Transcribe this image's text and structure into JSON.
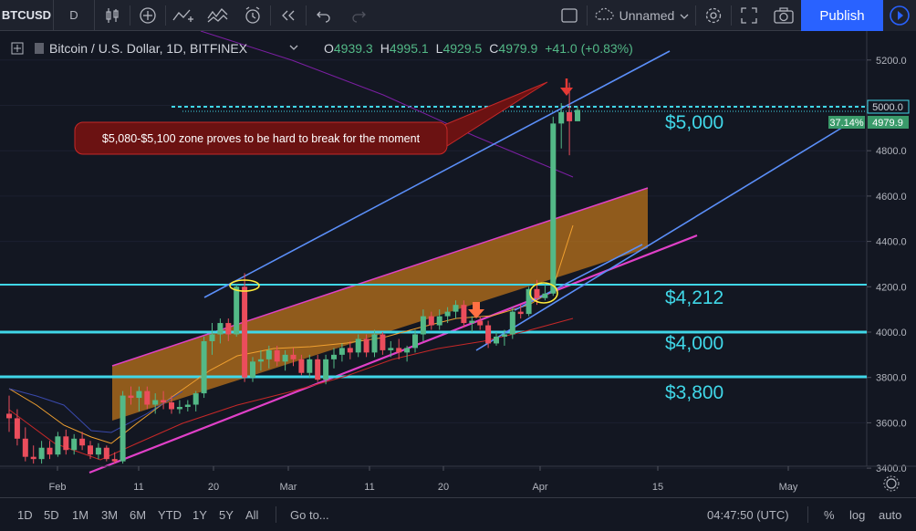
{
  "toolbar": {
    "symbol": "BTCUSD",
    "interval": "D",
    "layout_name": "Unnamed",
    "publish_label": "Publish",
    "icons": [
      "candles-icon",
      "add-indicator-icon",
      "compare-icon",
      "indicators-icon",
      "alert-icon",
      "replay-icon",
      "undo-icon",
      "redo-icon",
      "layout-icon",
      "cloud-icon",
      "settings-icon",
      "fullscreen-icon",
      "snapshot-icon",
      "play-icon"
    ]
  },
  "legend": {
    "title": "Bitcoin / U.S. Dollar, 1D, BITFINEX",
    "o_label": "O",
    "o_value": "4939.3",
    "h_label": "H",
    "h_value": "4995.1",
    "l_label": "L",
    "l_value": "4929.5",
    "c_label": "C",
    "c_value": "4979.9",
    "change": "+41.0 (+0.83%)"
  },
  "annotation": "$5,080-$5,100 zone proves to be hard to break for the moment",
  "level_labels": [
    "$5,000",
    "$4,212",
    "$4,000",
    "$3,800"
  ],
  "price_badges": {
    "dotted_line": "5000.0",
    "percent": "37.14%",
    "last_price": "4979.9"
  },
  "colors": {
    "background": "#131722",
    "up": "#53b987",
    "down": "#eb4d5c",
    "level_lines": "#40d7e8",
    "channel_lines": "#5b8ff9",
    "band_border": "#e040c8",
    "band_fill": "#c0761a",
    "annotation_bg": "#6b1212",
    "publish_button": "#2962ff"
  },
  "bottom": {
    "ranges": [
      "1D",
      "5D",
      "1M",
      "3M",
      "6M",
      "YTD",
      "1Y",
      "5Y",
      "All"
    ],
    "goto": "Go to...",
    "clock": "04:47:50 (UTC)",
    "percent": "%",
    "log": "log",
    "auto": "auto"
  },
  "chart_data": {
    "type": "candlestick",
    "title": "Bitcoin / U.S. Dollar, 1D, BITFINEX",
    "x_tick_labels": [
      "Feb",
      "11",
      "20",
      "Mar",
      "11",
      "20",
      "Apr",
      "15",
      "May"
    ],
    "y_tick_labels": [
      "5200.0",
      "5000.0",
      "4800.0",
      "4600.0",
      "4400.0",
      "4200.0",
      "4000.0",
      "3800.0",
      "3600.0",
      "3400.0"
    ],
    "ylim": [
      3400,
      5300
    ],
    "horizontal_levels": [
      5000,
      4212,
      4000,
      3800
    ],
    "candles": [
      {
        "o": 3640,
        "h": 3720,
        "l": 3560,
        "c": 3620
      },
      {
        "o": 3620,
        "h": 3660,
        "l": 3500,
        "c": 3530
      },
      {
        "o": 3530,
        "h": 3580,
        "l": 3430,
        "c": 3450
      },
      {
        "o": 3450,
        "h": 3500,
        "l": 3420,
        "c": 3440
      },
      {
        "o": 3440,
        "h": 3520,
        "l": 3420,
        "c": 3490
      },
      {
        "o": 3490,
        "h": 3520,
        "l": 3440,
        "c": 3460
      },
      {
        "o": 3460,
        "h": 3560,
        "l": 3450,
        "c": 3540
      },
      {
        "o": 3540,
        "h": 3570,
        "l": 3460,
        "c": 3480
      },
      {
        "o": 3480,
        "h": 3550,
        "l": 3460,
        "c": 3530
      },
      {
        "o": 3530,
        "h": 3560,
        "l": 3480,
        "c": 3500
      },
      {
        "o": 3500,
        "h": 3520,
        "l": 3440,
        "c": 3460
      },
      {
        "o": 3460,
        "h": 3510,
        "l": 3440,
        "c": 3490
      },
      {
        "o": 3490,
        "h": 3500,
        "l": 3430,
        "c": 3440
      },
      {
        "o": 3440,
        "h": 3470,
        "l": 3420,
        "c": 3430
      },
      {
        "o": 3430,
        "h": 3740,
        "l": 3420,
        "c": 3720
      },
      {
        "o": 3720,
        "h": 3760,
        "l": 3680,
        "c": 3710
      },
      {
        "o": 3710,
        "h": 3760,
        "l": 3650,
        "c": 3740
      },
      {
        "o": 3740,
        "h": 3760,
        "l": 3660,
        "c": 3680
      },
      {
        "o": 3680,
        "h": 3730,
        "l": 3640,
        "c": 3700
      },
      {
        "o": 3700,
        "h": 3740,
        "l": 3660,
        "c": 3690
      },
      {
        "o": 3690,
        "h": 3720,
        "l": 3640,
        "c": 3660
      },
      {
        "o": 3660,
        "h": 3700,
        "l": 3640,
        "c": 3670
      },
      {
        "o": 3670,
        "h": 3700,
        "l": 3650,
        "c": 3680
      },
      {
        "o": 3680,
        "h": 3740,
        "l": 3650,
        "c": 3730
      },
      {
        "o": 3730,
        "h": 3980,
        "l": 3710,
        "c": 3960
      },
      {
        "o": 3960,
        "h": 4040,
        "l": 3900,
        "c": 3990
      },
      {
        "o": 3990,
        "h": 4060,
        "l": 3950,
        "c": 4040
      },
      {
        "o": 4040,
        "h": 4060,
        "l": 3960,
        "c": 3990
      },
      {
        "o": 3990,
        "h": 4210,
        "l": 3980,
        "c": 4200
      },
      {
        "o": 4200,
        "h": 4260,
        "l": 3780,
        "c": 3800
      },
      {
        "o": 3800,
        "h": 3890,
        "l": 3780,
        "c": 3870
      },
      {
        "o": 3870,
        "h": 3920,
        "l": 3830,
        "c": 3880
      },
      {
        "o": 3880,
        "h": 3940,
        "l": 3840,
        "c": 3920
      },
      {
        "o": 3920,
        "h": 3940,
        "l": 3850,
        "c": 3870
      },
      {
        "o": 3870,
        "h": 3920,
        "l": 3830,
        "c": 3900
      },
      {
        "o": 3900,
        "h": 3930,
        "l": 3850,
        "c": 3880
      },
      {
        "o": 3880,
        "h": 3900,
        "l": 3810,
        "c": 3820
      },
      {
        "o": 3820,
        "h": 3900,
        "l": 3800,
        "c": 3880
      },
      {
        "o": 3880,
        "h": 3900,
        "l": 3780,
        "c": 3790
      },
      {
        "o": 3790,
        "h": 3900,
        "l": 3770,
        "c": 3880
      },
      {
        "o": 3880,
        "h": 3930,
        "l": 3840,
        "c": 3900
      },
      {
        "o": 3900,
        "h": 3950,
        "l": 3870,
        "c": 3930
      },
      {
        "o": 3930,
        "h": 3960,
        "l": 3880,
        "c": 3910
      },
      {
        "o": 3910,
        "h": 3990,
        "l": 3890,
        "c": 3970
      },
      {
        "o": 3970,
        "h": 3990,
        "l": 3890,
        "c": 3910
      },
      {
        "o": 3910,
        "h": 4010,
        "l": 3890,
        "c": 3990
      },
      {
        "o": 3990,
        "h": 4000,
        "l": 3900,
        "c": 3920
      },
      {
        "o": 3920,
        "h": 3960,
        "l": 3890,
        "c": 3930
      },
      {
        "o": 3930,
        "h": 3970,
        "l": 3880,
        "c": 3910
      },
      {
        "o": 3910,
        "h": 3940,
        "l": 3870,
        "c": 3930
      },
      {
        "o": 3930,
        "h": 4010,
        "l": 3910,
        "c": 3990
      },
      {
        "o": 3990,
        "h": 4100,
        "l": 3960,
        "c": 4070
      },
      {
        "o": 4070,
        "h": 4090,
        "l": 4010,
        "c": 4030
      },
      {
        "o": 4030,
        "h": 4100,
        "l": 4010,
        "c": 4070
      },
      {
        "o": 4070,
        "h": 4110,
        "l": 4040,
        "c": 4090
      },
      {
        "o": 4090,
        "h": 4140,
        "l": 4060,
        "c": 4120
      },
      {
        "o": 4120,
        "h": 4140,
        "l": 4020,
        "c": 4040
      },
      {
        "o": 4040,
        "h": 4070,
        "l": 4000,
        "c": 4050
      },
      {
        "o": 4050,
        "h": 4070,
        "l": 4010,
        "c": 4030
      },
      {
        "o": 4030,
        "h": 4050,
        "l": 3930,
        "c": 3950
      },
      {
        "o": 3950,
        "h": 4000,
        "l": 3940,
        "c": 3980
      },
      {
        "o": 3980,
        "h": 4010,
        "l": 3940,
        "c": 3990
      },
      {
        "o": 3990,
        "h": 4110,
        "l": 3970,
        "c": 4090
      },
      {
        "o": 4090,
        "h": 4120,
        "l": 4060,
        "c": 4080
      },
      {
        "o": 4080,
        "h": 4200,
        "l": 4070,
        "c": 4190
      },
      {
        "o": 4190,
        "h": 4230,
        "l": 4120,
        "c": 4150
      },
      {
        "o": 4150,
        "h": 4210,
        "l": 4140,
        "c": 4170
      },
      {
        "o": 4170,
        "h": 4950,
        "l": 4160,
        "c": 4920
      },
      {
        "o": 4920,
        "h": 5010,
        "l": 4810,
        "c": 4970
      },
      {
        "o": 4970,
        "h": 5100,
        "l": 4780,
        "c": 4930
      },
      {
        "o": 4930,
        "h": 4995,
        "l": 4930,
        "c": 4980
      }
    ]
  }
}
